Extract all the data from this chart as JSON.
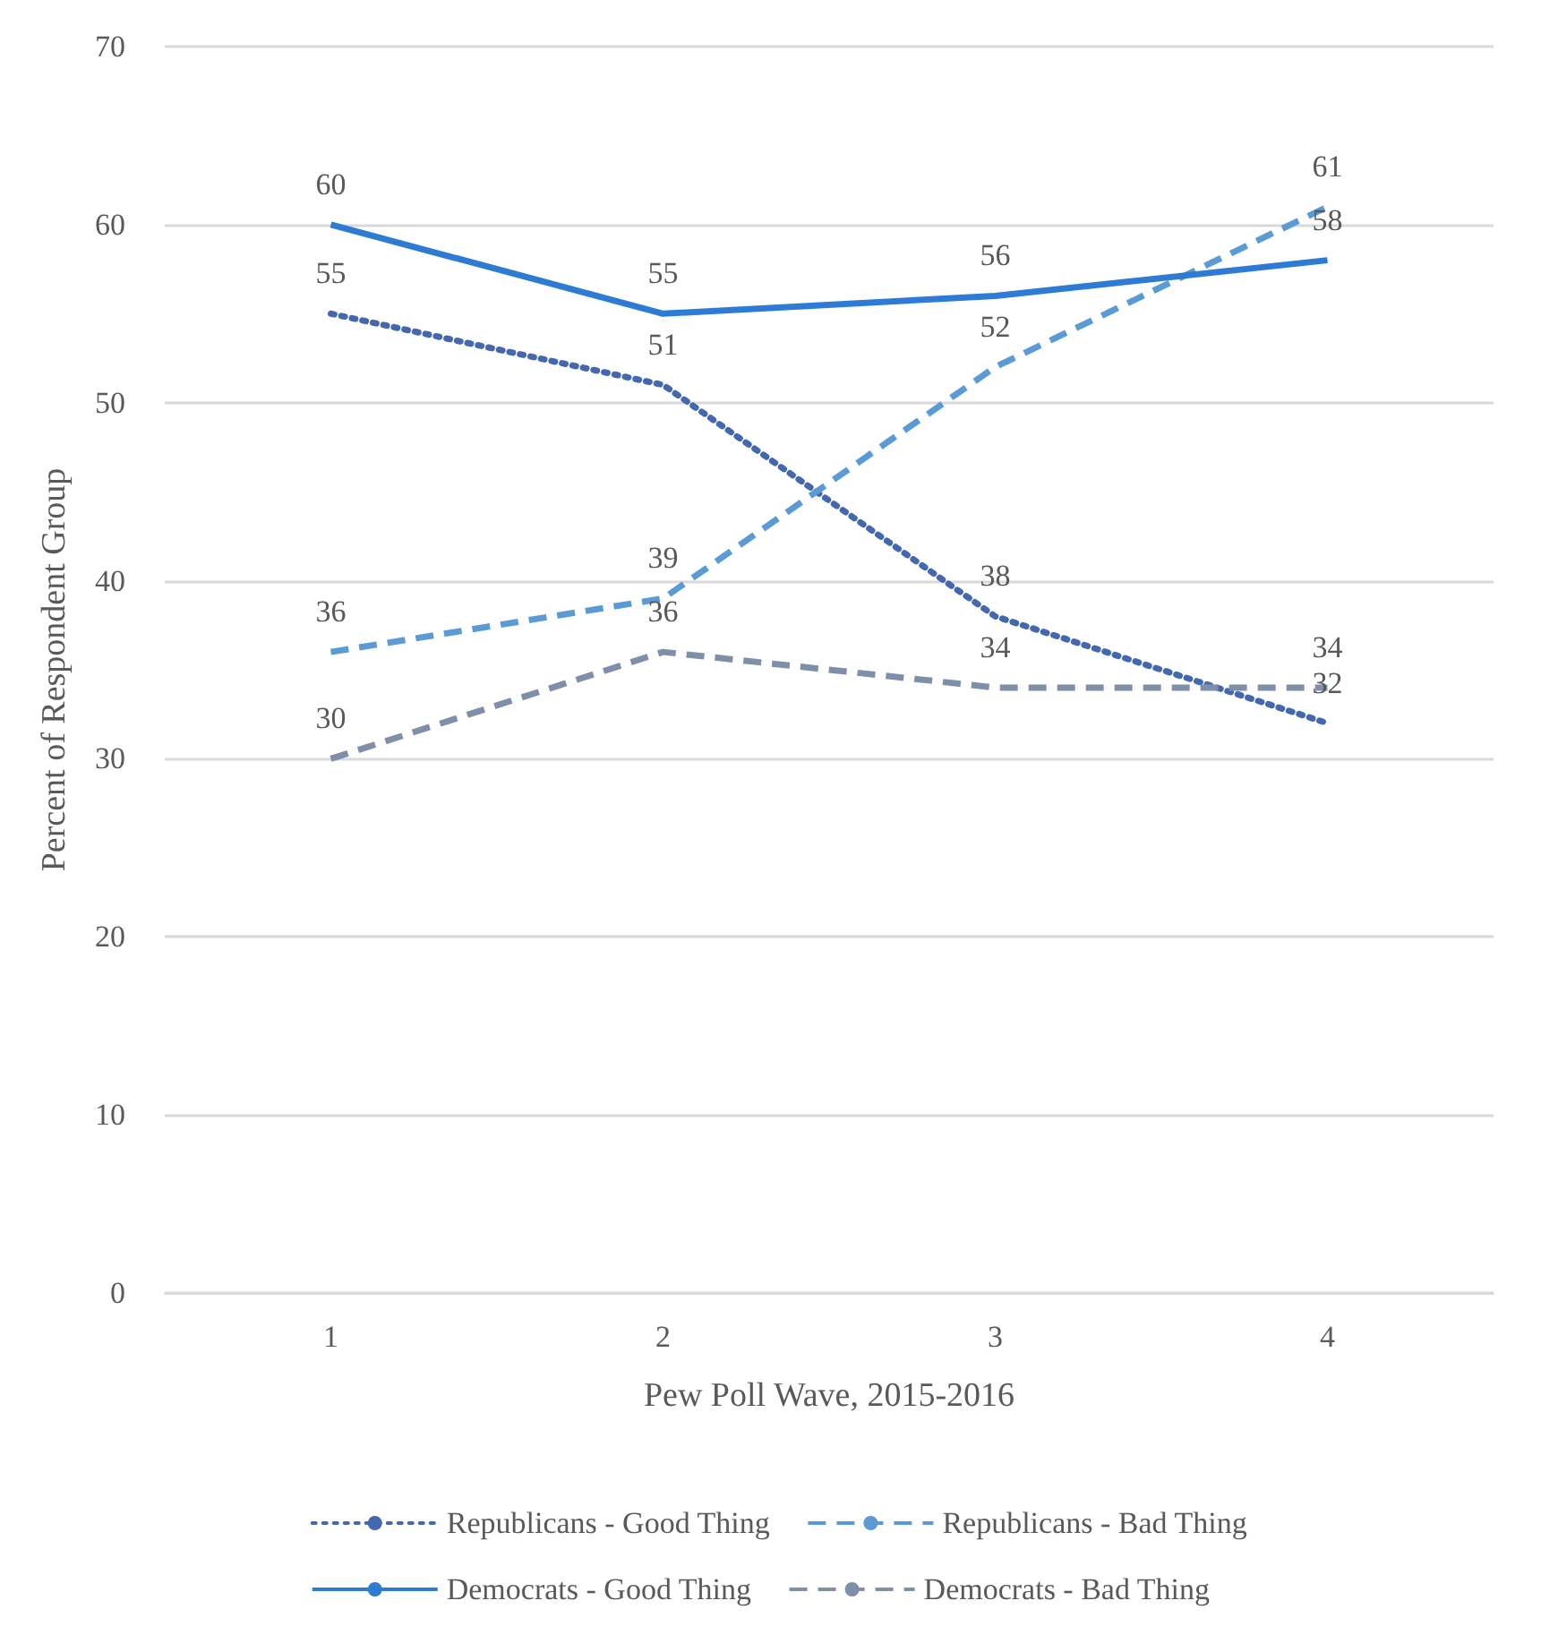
{
  "chart_data": {
    "type": "line",
    "xlabel": "Pew Poll Wave, 2015-2016",
    "ylabel": "Percent of Respondent Group",
    "categories": [
      "1",
      "2",
      "3",
      "4"
    ],
    "series": [
      {
        "name": "Republicans - Good Thing",
        "color": "#4468b0",
        "line_style": "dotted",
        "values": [
          55,
          51,
          38,
          32
        ]
      },
      {
        "name": "Republicans - Bad Thing",
        "color": "#5b9bd5",
        "line_style": "dashed",
        "values": [
          36,
          39,
          52,
          61
        ]
      },
      {
        "name": "Democrats - Good Thing",
        "color": "#2e7bd6",
        "line_style": "solid",
        "values": [
          60,
          55,
          56,
          58
        ]
      },
      {
        "name": "Democrats - Bad Thing",
        "color": "#7f8fa9",
        "line_style": "dashed",
        "values": [
          30,
          36,
          34,
          34
        ]
      }
    ],
    "ylim": [
      0,
      70
    ],
    "yticks": [
      0,
      10,
      20,
      30,
      40,
      50,
      60,
      70
    ],
    "grid": "y",
    "legend": "bottom",
    "data_labels": true,
    "marker": "none"
  }
}
